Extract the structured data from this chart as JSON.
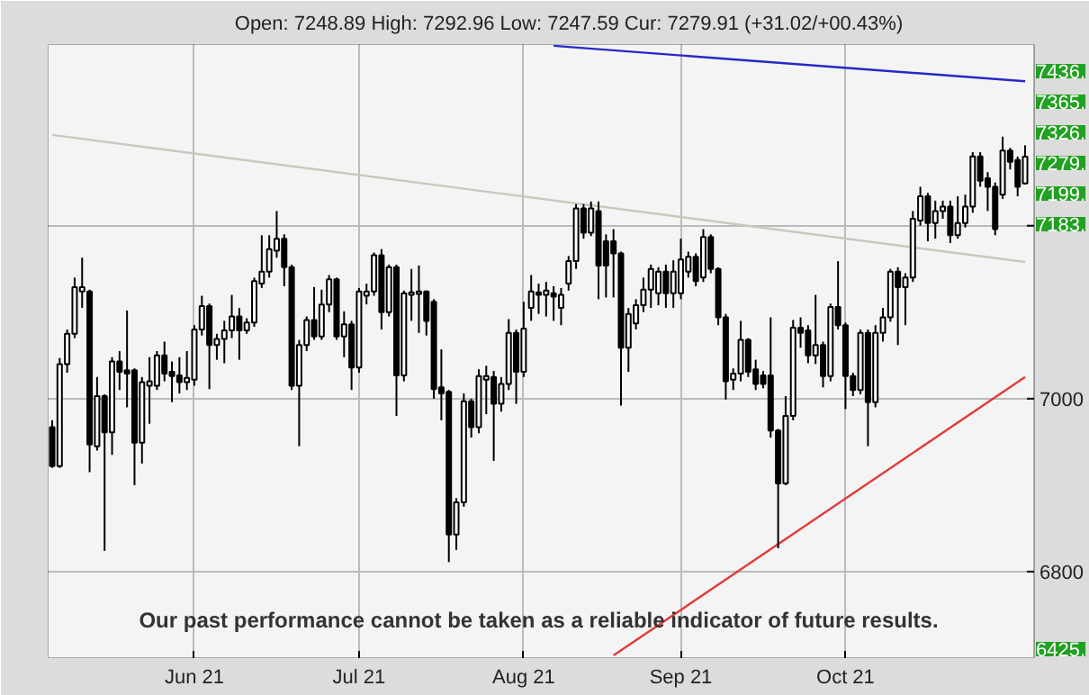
{
  "chart_data": {
    "type": "candlestick",
    "subtitle": "Open: 7248.89 High: 7292.96 Low: 7247.59 Cur: 7279.91 (+31.02/+00.43%)",
    "categories": [
      null,
      null,
      null,
      null,
      null,
      null,
      null,
      null,
      null,
      null,
      null,
      null,
      null,
      null,
      null,
      null,
      null,
      null,
      null,
      "Jun 21",
      null,
      null,
      null,
      null,
      null,
      null,
      null,
      null,
      null,
      null,
      null,
      null,
      null,
      null,
      null,
      null,
      null,
      null,
      null,
      null,
      null,
      "Jul 21",
      null,
      null,
      null,
      null,
      null,
      null,
      null,
      null,
      null,
      null,
      null,
      null,
      null,
      null,
      null,
      null,
      null,
      null,
      null,
      null,
      null,
      "Aug 21",
      null,
      null,
      null,
      null,
      null,
      null,
      null,
      null,
      null,
      null,
      null,
      null,
      null,
      null,
      null,
      null,
      null,
      null,
      null,
      null,
      "Sep 21",
      null,
      null,
      null,
      null,
      null,
      null,
      null,
      null,
      null,
      null,
      null,
      null,
      null,
      null,
      null,
      null,
      null,
      null,
      null,
      null,
      null,
      "Oct 21",
      null,
      null,
      null,
      null,
      null,
      null,
      null,
      null,
      null,
      null,
      null,
      null,
      null,
      null,
      null,
      null,
      null,
      null,
      null,
      null,
      null,
      null,
      null,
      null
    ],
    "ohlc": [
      [
        6967,
        6975,
        6920,
        6922
      ],
      [
        6922,
        7047,
        6920,
        7040
      ],
      [
        7040,
        7080,
        7030,
        7075
      ],
      [
        7075,
        7140,
        7070,
        7129
      ],
      [
        7124,
        7163,
        7105,
        7129
      ],
      [
        7124,
        7126,
        6915,
        6947
      ],
      [
        6945,
        7025,
        6940,
        7003
      ],
      [
        7003,
        7005,
        6824,
        6961
      ],
      [
        6961,
        7048,
        6935,
        7043
      ],
      [
        7043,
        7055,
        7010,
        7031
      ],
      [
        7033,
        7102,
        6990,
        7029
      ],
      [
        7033,
        7035,
        6900,
        6949
      ],
      [
        6949,
        7025,
        6925,
        7019
      ],
      [
        7015,
        7048,
        6971,
        7020
      ],
      [
        7015,
        7055,
        7010,
        7050
      ],
      [
        7050,
        7066,
        7020,
        7029
      ],
      [
        7031,
        7043,
        6996,
        7026
      ],
      [
        7027,
        7048,
        7006,
        7019
      ],
      [
        7019,
        7055,
        7010,
        7024
      ],
      [
        7022,
        7085,
        7015,
        7080
      ],
      [
        7080,
        7119,
        7073,
        7107
      ],
      [
        7107,
        7110,
        7011,
        7062
      ],
      [
        7062,
        7075,
        7045,
        7069
      ],
      [
        7069,
        7090,
        7041,
        7079
      ],
      [
        7079,
        7120,
        7070,
        7095
      ],
      [
        7095,
        7105,
        7045,
        7079
      ],
      [
        7079,
        7093,
        7075,
        7088
      ],
      [
        7088,
        7140,
        7083,
        7136
      ],
      [
        7133,
        7189,
        7128,
        7147
      ],
      [
        7147,
        7189,
        7140,
        7173
      ],
      [
        7171,
        7217,
        7163,
        7185
      ],
      [
        7185,
        7190,
        7130,
        7152
      ],
      [
        7152,
        7155,
        7010,
        7015
      ],
      [
        7015,
        7068,
        6945,
        7062
      ],
      [
        7062,
        7095,
        7055,
        7091
      ],
      [
        7091,
        7129,
        7068,
        7072
      ],
      [
        7072,
        7126,
        7068,
        7109
      ],
      [
        7109,
        7143,
        7100,
        7138
      ],
      [
        7138,
        7140,
        7068,
        7072
      ],
      [
        7072,
        7101,
        7048,
        7086
      ],
      [
        7086,
        7090,
        7010,
        7036
      ],
      [
        7036,
        7128,
        7030,
        7124
      ],
      [
        7119,
        7133,
        7109,
        7124
      ],
      [
        7124,
        7169,
        7119,
        7166
      ],
      [
        7166,
        7173,
        7080,
        7100
      ],
      [
        7100,
        7155,
        7095,
        7152
      ],
      [
        7152,
        7155,
        6980,
        7027
      ],
      [
        7027,
        7125,
        7020,
        7122
      ],
      [
        7120,
        7150,
        7090,
        7123
      ],
      [
        7121,
        7154,
        7076,
        7124
      ],
      [
        7124,
        7125,
        7073,
        7090
      ],
      [
        7112,
        7115,
        7000,
        7011
      ],
      [
        7013,
        7057,
        6975,
        7006
      ],
      [
        7008,
        7010,
        6811,
        6843
      ],
      [
        6843,
        6885,
        6825,
        6880
      ],
      [
        6880,
        7006,
        6875,
        6997
      ],
      [
        6997,
        7000,
        6955,
        6967
      ],
      [
        6967,
        7034,
        6960,
        7026
      ],
      [
        7022,
        7038,
        6982,
        7026
      ],
      [
        7025,
        7032,
        6928,
        6994
      ],
      [
        6994,
        7025,
        6985,
        7017
      ],
      [
        7017,
        7092,
        7010,
        7076
      ],
      [
        7076,
        7080,
        6994,
        7031
      ],
      [
        7031,
        7112,
        7025,
        7081
      ],
      [
        7105,
        7143,
        7090,
        7124
      ],
      [
        7123,
        7133,
        7098,
        7120
      ],
      [
        7120,
        7135,
        7095,
        7125
      ],
      [
        7122,
        7130,
        7090,
        7118
      ],
      [
        7105,
        7128,
        7085,
        7120
      ],
      [
        7133,
        7165,
        7125,
        7159
      ],
      [
        7159,
        7225,
        7150,
        7220
      ],
      [
        7220,
        7225,
        7185,
        7192
      ],
      [
        7192,
        7228,
        7188,
        7220
      ],
      [
        7217,
        7228,
        7115,
        7154
      ],
      [
        7182,
        7190,
        7117,
        7154
      ],
      [
        7182,
        7196,
        7117,
        7168
      ],
      [
        7168,
        7170,
        6992,
        7059
      ],
      [
        7059,
        7105,
        7031,
        7098
      ],
      [
        7087,
        7115,
        7080,
        7108
      ],
      [
        7108,
        7140,
        7100,
        7126
      ],
      [
        7126,
        7155,
        7105,
        7150
      ],
      [
        7122,
        7152,
        7108,
        7147
      ],
      [
        7147,
        7155,
        7105,
        7122
      ],
      [
        7122,
        7160,
        7105,
        7147
      ],
      [
        7122,
        7185,
        7115,
        7161
      ],
      [
        7147,
        7170,
        7140,
        7164
      ],
      [
        7164,
        7168,
        7130,
        7136
      ],
      [
        7140,
        7196,
        7135,
        7187
      ],
      [
        7187,
        7190,
        7145,
        7150
      ],
      [
        7150,
        7152,
        7085,
        7094
      ],
      [
        7094,
        7098,
        6999,
        7020
      ],
      [
        7022,
        7035,
        7010,
        7029
      ],
      [
        7029,
        7090,
        7020,
        7068
      ],
      [
        7068,
        7070,
        7025,
        7031
      ],
      [
        7034,
        7045,
        7010,
        7017
      ],
      [
        7027,
        7032,
        7012,
        7017
      ],
      [
        7027,
        7094,
        6955,
        6963
      ],
      [
        6963,
        6965,
        6827,
        6902
      ],
      [
        6902,
        7003,
        6900,
        6980
      ],
      [
        6980,
        7091,
        6975,
        7082
      ],
      [
        7082,
        7094,
        7059,
        7076
      ],
      [
        7079,
        7085,
        7041,
        7050
      ],
      [
        7050,
        7120,
        7040,
        7062
      ],
      [
        7062,
        7066,
        7013,
        7026
      ],
      [
        7026,
        7110,
        7020,
        7106
      ],
      [
        7106,
        7159,
        7080,
        7085
      ],
      [
        7085,
        7088,
        6988,
        7026
      ],
      [
        7026,
        7030,
        7003,
        7010
      ],
      [
        7010,
        7080,
        7005,
        7076
      ],
      [
        7076,
        7080,
        6945,
        6996
      ],
      [
        6996,
        7085,
        6990,
        7076
      ],
      [
        7076,
        7105,
        7066,
        7094
      ],
      [
        7094,
        7150,
        7089,
        7147
      ],
      [
        7147,
        7152,
        7062,
        7129
      ],
      [
        7129,
        7145,
        7085,
        7140
      ],
      [
        7140,
        7217,
        7135,
        7208
      ],
      [
        7206,
        7245,
        7200,
        7234
      ],
      [
        7234,
        7238,
        7182,
        7203
      ],
      [
        7203,
        7229,
        7185,
        7217
      ],
      [
        7217,
        7229,
        7208,
        7222
      ],
      [
        7222,
        7229,
        7180,
        7189
      ],
      [
        7189,
        7234,
        7185,
        7203
      ],
      [
        7203,
        7236,
        7198,
        7222
      ],
      [
        7222,
        7285,
        7215,
        7280
      ],
      [
        7280,
        7285,
        7245,
        7252
      ],
      [
        7255,
        7262,
        7217,
        7245
      ],
      [
        7245,
        7250,
        7189,
        7196
      ],
      [
        7236,
        7303,
        7231,
        7287
      ],
      [
        7287,
        7290,
        7265,
        7274
      ],
      [
        7276,
        7280,
        7234,
        7245
      ],
      [
        7248.89,
        7292.96,
        7247.59,
        7279.91
      ]
    ],
    "series": [
      {
        "type": "line",
        "color": "#c8c8be",
        "values": [
          7305,
          null,
          null,
          null,
          null,
          null,
          null,
          null,
          null,
          null,
          null,
          null,
          null,
          null,
          null,
          null,
          null,
          null,
          null,
          null,
          null,
          null,
          null,
          null,
          null,
          null,
          null,
          null,
          null,
          null,
          null,
          null,
          null,
          null,
          null,
          null,
          null,
          null,
          null,
          null,
          null,
          null,
          null,
          null,
          null,
          null,
          null,
          null,
          null,
          null,
          null,
          null,
          null,
          null,
          null,
          null,
          null,
          null,
          null,
          null,
          null,
          null,
          null,
          null,
          null,
          null,
          null,
          null,
          null,
          null,
          null,
          null,
          null,
          null,
          null,
          null,
          null,
          null,
          null,
          null,
          null,
          null,
          null,
          null,
          null,
          null,
          null,
          null,
          null,
          null,
          null,
          null,
          null,
          null,
          null,
          null,
          null,
          null,
          null,
          null,
          null,
          null,
          null,
          null,
          null,
          null,
          null,
          null,
          null,
          null,
          null,
          null,
          null,
          null,
          null,
          null,
          null,
          null,
          null,
          null,
          null,
          null,
          null,
          null,
          null,
          null,
          null,
          null,
          null,
          null,
          7158
        ]
      },
      {
        "type": "line",
        "color": "#2828c8",
        "values": [
          null,
          null,
          null,
          null,
          null,
          null,
          null,
          null,
          null,
          null,
          null,
          null,
          null,
          null,
          null,
          null,
          null,
          null,
          null,
          null,
          null,
          null,
          null,
          null,
          null,
          null,
          null,
          null,
          null,
          null,
          null,
          null,
          null,
          null,
          null,
          null,
          null,
          null,
          null,
          null,
          null,
          null,
          null,
          null,
          null,
          null,
          null,
          null,
          null,
          null,
          null,
          null,
          null,
          null,
          null,
          null,
          null,
          null,
          null,
          null,
          null,
          null,
          null,
          null,
          null,
          null,
          null,
          7408,
          null,
          null,
          null,
          null,
          null,
          null,
          null,
          null,
          null,
          null,
          null,
          null,
          null,
          null,
          null,
          null,
          null,
          null,
          null,
          null,
          null,
          null,
          null,
          null,
          null,
          null,
          null,
          null,
          null,
          null,
          null,
          null,
          null,
          null,
          null,
          null,
          null,
          null,
          null,
          null,
          null,
          null,
          null,
          null,
          null,
          null,
          null,
          null,
          null,
          null,
          null,
          null,
          null,
          null,
          null,
          null,
          null,
          null,
          null,
          null,
          null,
          null,
          7367
        ]
      },
      {
        "type": "line",
        "color": "#e03c3c",
        "values": [
          null,
          null,
          null,
          null,
          null,
          null,
          null,
          null,
          null,
          null,
          null,
          null,
          null,
          null,
          null,
          null,
          null,
          null,
          null,
          null,
          null,
          null,
          null,
          null,
          null,
          null,
          null,
          null,
          null,
          null,
          null,
          null,
          null,
          null,
          null,
          null,
          null,
          null,
          null,
          null,
          null,
          null,
          null,
          null,
          null,
          null,
          null,
          null,
          null,
          null,
          null,
          null,
          null,
          null,
          null,
          null,
          null,
          null,
          null,
          null,
          null,
          null,
          null,
          null,
          null,
          null,
          null,
          null,
          null,
          null,
          null,
          null,
          null,
          null,
          null,
          6703,
          null,
          null,
          null,
          null,
          null,
          null,
          null,
          null,
          null,
          null,
          null,
          null,
          null,
          null,
          null,
          null,
          null,
          null,
          null,
          null,
          null,
          null,
          null,
          null,
          null,
          null,
          null,
          null,
          null,
          null,
          null,
          null,
          null,
          null,
          null,
          null,
          null,
          null,
          null,
          null,
          null,
          null,
          null,
          null,
          null,
          null,
          null,
          null,
          null,
          null,
          null,
          null,
          null,
          null,
          7025
        ]
      }
    ],
    "ylim": [
      6700,
      7410
    ],
    "yticks": [
      6800,
      7000,
      {
        "value": 7200,
        "label": null
      }
    ],
    "grid": true,
    "annotations": [
      "Our past performance cannot be taken as a reliable indicator of future results.",
      "7436.",
      "7365.",
      "7326.",
      "7279.",
      "7199.",
      "7183.",
      "6425."
    ]
  }
}
